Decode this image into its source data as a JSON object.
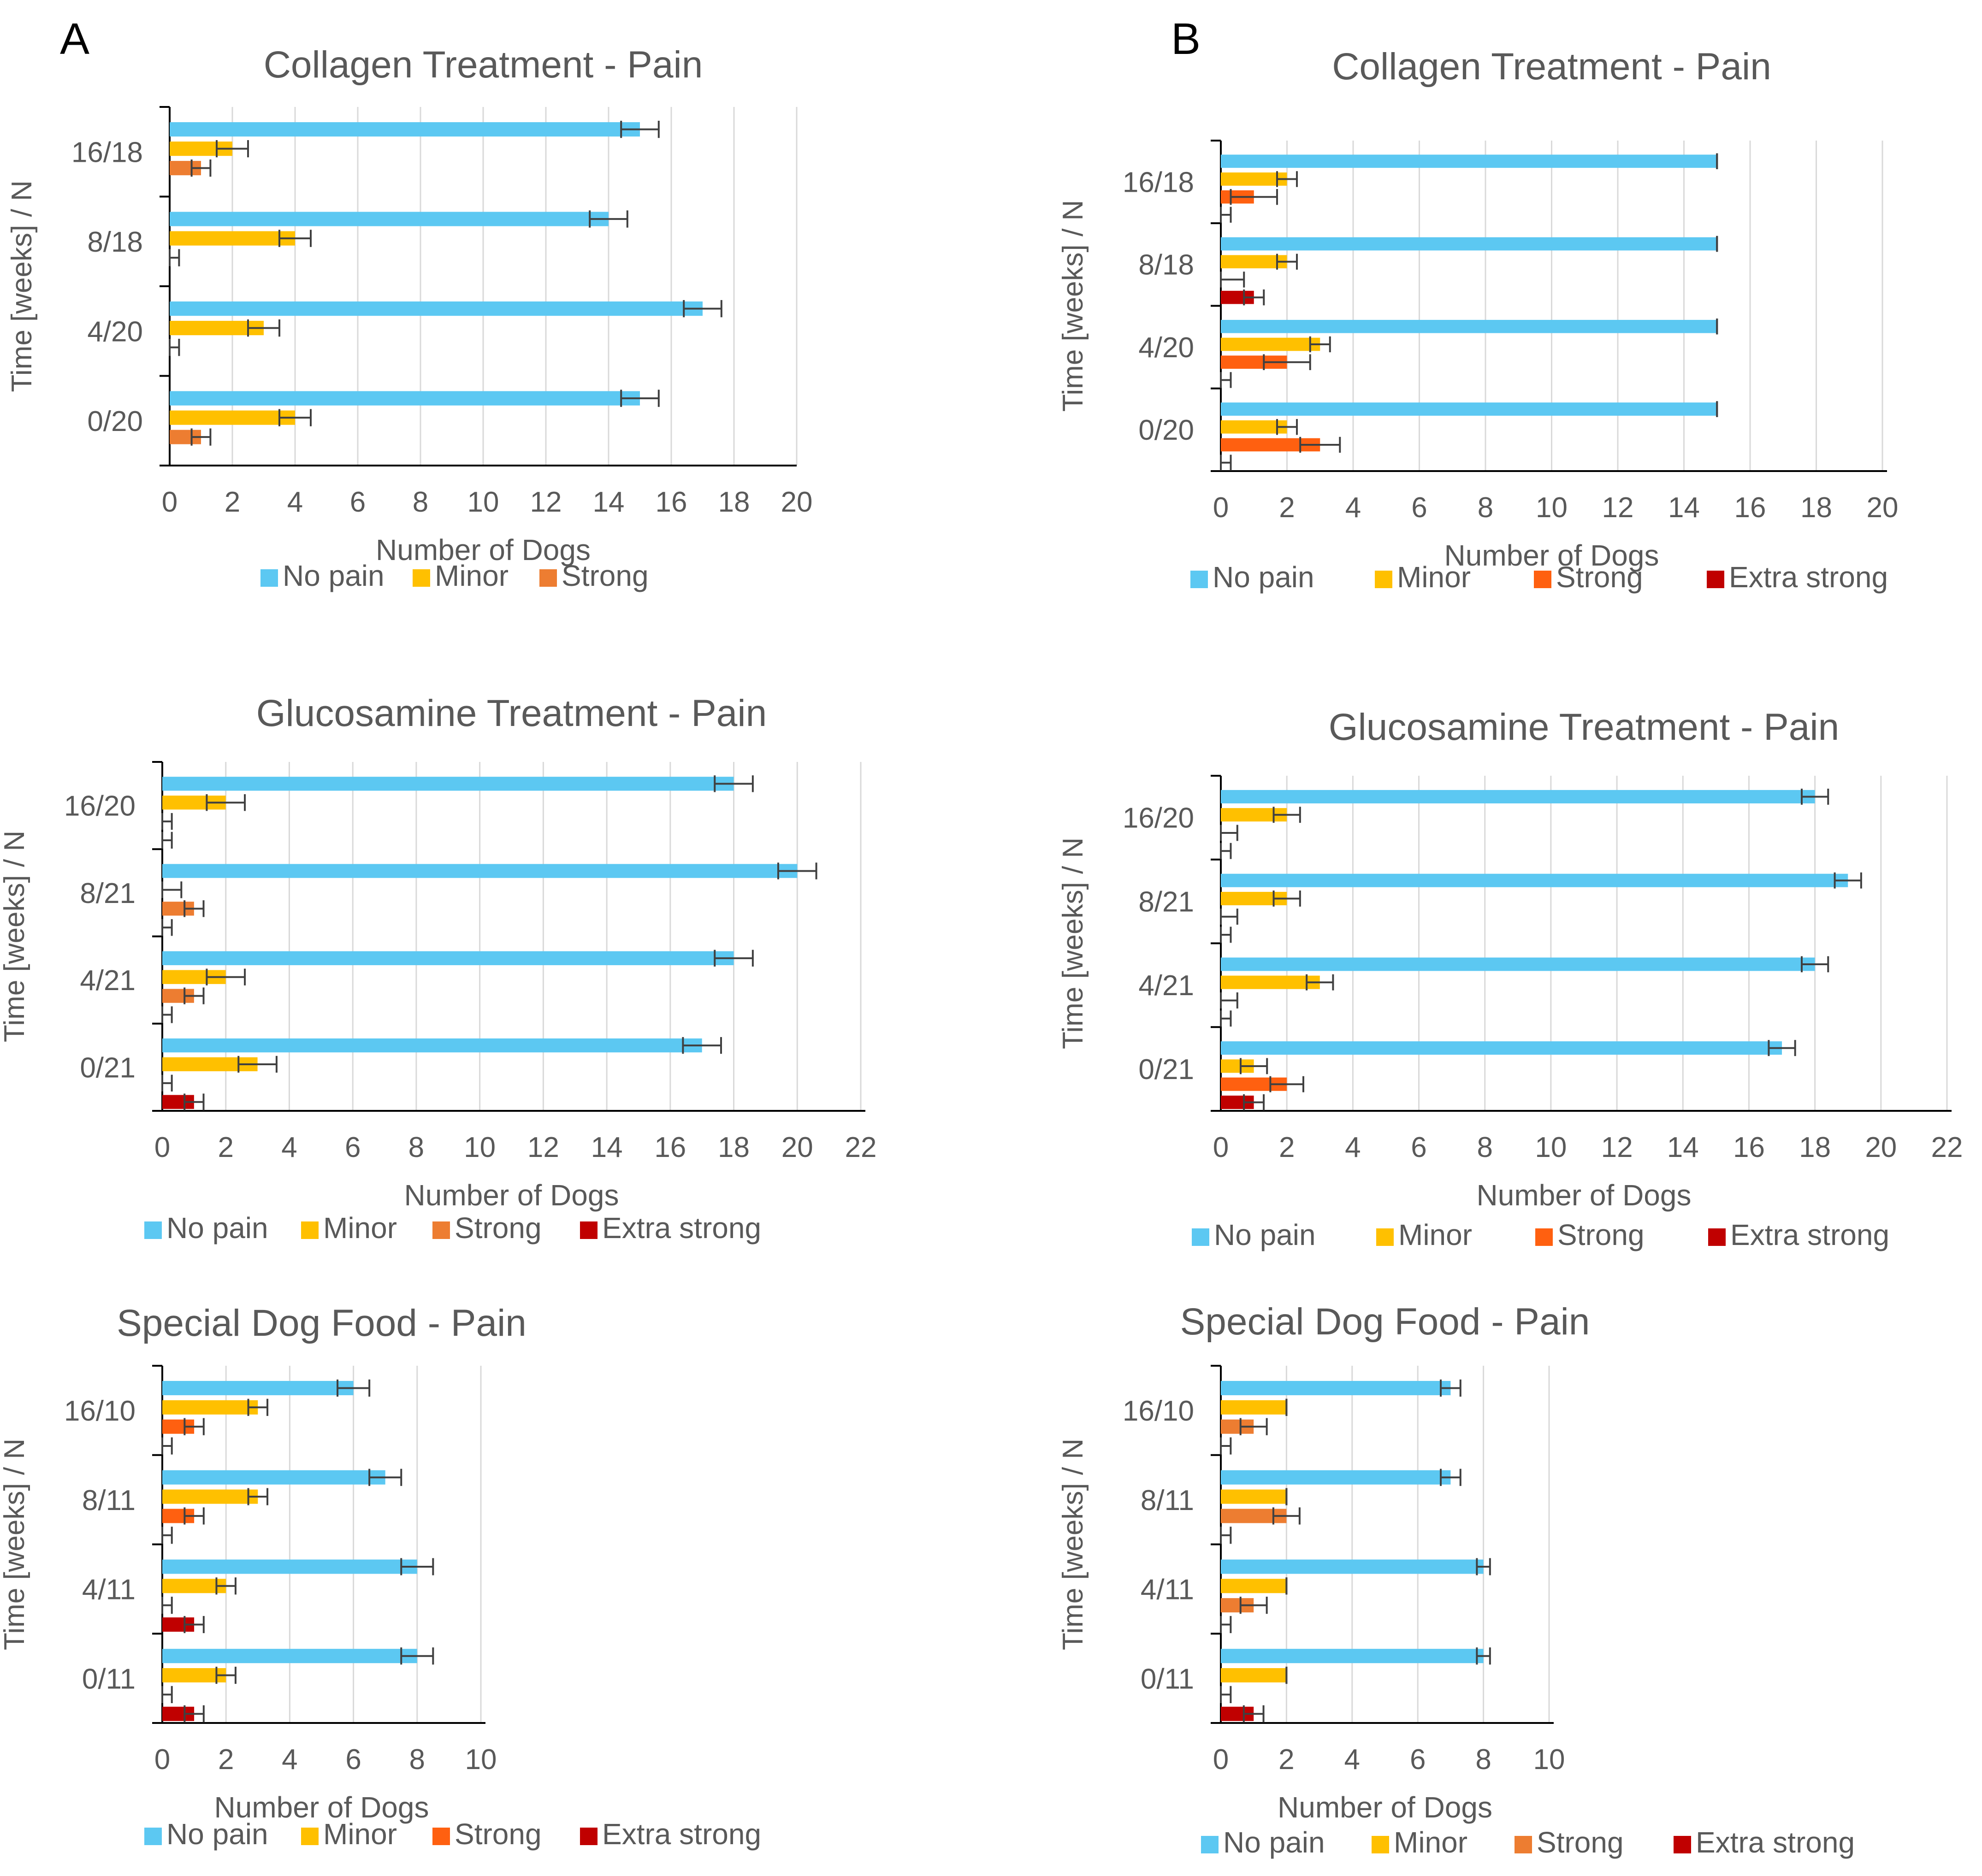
{
  "panels": {
    "a": "A",
    "b": "B"
  },
  "colors": {
    "No pain": "#5cc8f2",
    "Minor": "#ffc000",
    "Strong": "#ed7d31",
    "Strong-alt": "#ff6010",
    "Extra strong": "#c00000"
  },
  "chart_data": [
    {
      "id": "A1",
      "type": "bar",
      "orientation": "horizontal",
      "title": "Collagen Treatment - Pain",
      "xlabel": "Number of Dogs",
      "ylabel": "Time [weeks]  / N",
      "xlim": [
        0,
        20
      ],
      "xticks": [
        0,
        2,
        4,
        6,
        8,
        10,
        12,
        14,
        16,
        18,
        20
      ],
      "categories": [
        "16/18",
        "8/18",
        "4/20",
        "0/20"
      ],
      "legend": [
        "No pain",
        "Minor",
        "Strong"
      ],
      "series": [
        {
          "name": "No pain",
          "values": [
            15,
            14,
            17,
            15
          ],
          "errors": [
            0.6,
            0.6,
            0.6,
            0.6
          ]
        },
        {
          "name": "Minor",
          "values": [
            2,
            4,
            3,
            4
          ],
          "errors": [
            0.5,
            0.5,
            0.5,
            0.5
          ]
        },
        {
          "name": "Strong",
          "values": [
            1,
            0,
            0,
            1
          ],
          "errors": [
            0.3,
            0.3,
            0.3,
            0.3
          ]
        }
      ]
    },
    {
      "id": "B1",
      "type": "bar",
      "orientation": "horizontal",
      "title": "Collagen Treatment - Pain",
      "xlabel": "Number of Dogs",
      "ylabel": "Time [weeks]  / N",
      "xlim": [
        0,
        20
      ],
      "xticks": [
        0,
        2,
        4,
        6,
        8,
        10,
        12,
        14,
        16,
        18,
        20
      ],
      "categories": [
        "16/18",
        "8/18",
        "4/20",
        "0/20"
      ],
      "legend": [
        "No pain",
        "Minor",
        "Strong",
        "Extra strong"
      ],
      "series": [
        {
          "name": "No pain",
          "values": [
            15,
            15,
            15,
            15
          ],
          "errors": [
            0,
            0,
            0,
            0
          ]
        },
        {
          "name": "Minor",
          "values": [
            2,
            2,
            3,
            2
          ],
          "errors": [
            0.3,
            0.3,
            0.3,
            0.3
          ]
        },
        {
          "name": "Strong",
          "values": [
            1,
            0,
            2,
            3
          ],
          "errors": [
            0.7,
            0.7,
            0.7,
            0.6
          ]
        },
        {
          "name": "Extra strong",
          "values": [
            0,
            1,
            0,
            0
          ],
          "errors": [
            0.3,
            0.3,
            0.3,
            0.3
          ]
        }
      ]
    },
    {
      "id": "A2",
      "type": "bar",
      "orientation": "horizontal",
      "title": "Glucosamine Treatment - Pain",
      "xlabel": "Number of Dogs",
      "ylabel": "Time [weeks]  / N",
      "xlim": [
        0,
        22
      ],
      "xticks": [
        0,
        2,
        4,
        6,
        8,
        10,
        12,
        14,
        16,
        18,
        20,
        22
      ],
      "categories": [
        "16/20",
        "8/21",
        "4/21",
        "0/21"
      ],
      "legend": [
        "No pain",
        "Minor",
        "Strong",
        "Extra strong"
      ],
      "series": [
        {
          "name": "No pain",
          "values": [
            18,
            20,
            18,
            17
          ],
          "errors": [
            0.6,
            0.6,
            0.6,
            0.6
          ]
        },
        {
          "name": "Minor",
          "values": [
            2,
            0,
            2,
            3
          ],
          "errors": [
            0.6,
            0.6,
            0.6,
            0.6
          ]
        },
        {
          "name": "Strong",
          "values": [
            0,
            1,
            1,
            0
          ],
          "errors": [
            0.3,
            0.3,
            0.3,
            0.3
          ]
        },
        {
          "name": "Extra strong",
          "values": [
            0,
            0,
            0,
            1
          ],
          "errors": [
            0.3,
            0.3,
            0.3,
            0.3
          ]
        }
      ]
    },
    {
      "id": "B2",
      "type": "bar",
      "orientation": "horizontal",
      "title": "Glucosamine Treatment - Pain",
      "xlabel": "Number of Dogs",
      "ylabel": "Time [weeks]  / N",
      "xlim": [
        0,
        22
      ],
      "xticks": [
        0,
        2,
        4,
        6,
        8,
        10,
        12,
        14,
        16,
        18,
        20,
        22
      ],
      "categories": [
        "16/20",
        "8/21",
        "4/21",
        "0/21"
      ],
      "legend": [
        "No pain",
        "Minor",
        "Strong",
        "Extra strong"
      ],
      "series": [
        {
          "name": "No pain",
          "values": [
            18,
            19,
            18,
            17
          ],
          "errors": [
            0.4,
            0.4,
            0.4,
            0.4
          ]
        },
        {
          "name": "Minor",
          "values": [
            2,
            2,
            3,
            1
          ],
          "errors": [
            0.4,
            0.4,
            0.4,
            0.4
          ]
        },
        {
          "name": "Strong",
          "values": [
            0,
            0,
            0,
            2
          ],
          "errors": [
            0.5,
            0.5,
            0.5,
            0.5
          ]
        },
        {
          "name": "Extra strong",
          "values": [
            0,
            0,
            0,
            1
          ],
          "errors": [
            0.3,
            0.3,
            0.3,
            0.3
          ]
        }
      ]
    },
    {
      "id": "A3",
      "type": "bar",
      "orientation": "horizontal",
      "title": "Special Dog Food - Pain",
      "xlabel": "Number of Dogs",
      "ylabel": "Time [weeks]  / N",
      "xlim": [
        0,
        10
      ],
      "xticks": [
        0,
        2,
        4,
        6,
        8,
        10
      ],
      "categories": [
        "16/10",
        "8/11",
        "4/11",
        "0/11"
      ],
      "legend": [
        "No pain",
        "Minor",
        "Strong",
        "Extra strong"
      ],
      "series": [
        {
          "name": "No pain",
          "values": [
            6,
            7,
            8,
            8
          ],
          "errors": [
            0.5,
            0.5,
            0.5,
            0.5
          ]
        },
        {
          "name": "Minor",
          "values": [
            3,
            3,
            2,
            2
          ],
          "errors": [
            0.3,
            0.3,
            0.3,
            0.3
          ]
        },
        {
          "name": "Strong",
          "values": [
            1,
            1,
            0,
            0
          ],
          "errors": [
            0.3,
            0.3,
            0.3,
            0.3
          ]
        },
        {
          "name": "Extra strong",
          "values": [
            0,
            0,
            1,
            1
          ],
          "errors": [
            0.3,
            0.3,
            0.3,
            0.3
          ]
        }
      ]
    },
    {
      "id": "B3",
      "type": "bar",
      "orientation": "horizontal",
      "title": "Special Dog Food - Pain",
      "xlabel": "Number of Dogs",
      "ylabel": "Time [weeks]  / N",
      "xlim": [
        0,
        10
      ],
      "xticks": [
        0,
        2,
        4,
        6,
        8,
        10
      ],
      "categories": [
        "16/10",
        "8/11",
        "4/11",
        "0/11"
      ],
      "legend": [
        "No pain",
        "Minor",
        "Strong",
        "Extra strong"
      ],
      "series": [
        {
          "name": "No pain",
          "values": [
            7,
            7,
            8,
            8
          ],
          "errors": [
            0.3,
            0.3,
            0.2,
            0.2
          ]
        },
        {
          "name": "Minor",
          "values": [
            2,
            2,
            2,
            2
          ],
          "errors": [
            0,
            0,
            0,
            0
          ]
        },
        {
          "name": "Strong",
          "values": [
            1,
            2,
            1,
            0
          ],
          "errors": [
            0.4,
            0.4,
            0.4,
            0.3
          ]
        },
        {
          "name": "Extra strong",
          "values": [
            0,
            0,
            0,
            1
          ],
          "errors": [
            0.3,
            0.3,
            0.3,
            0.3
          ]
        }
      ]
    }
  ]
}
